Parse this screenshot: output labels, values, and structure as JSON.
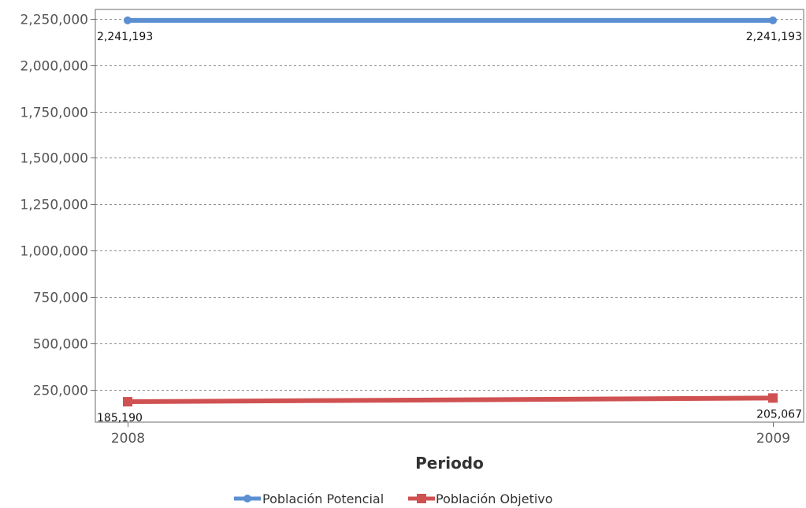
{
  "chart_data": {
    "type": "line",
    "title": "",
    "xlabel": "Periodo",
    "ylabel": "",
    "categories": [
      "2008",
      "2009"
    ],
    "x_tick_labels": [
      "2008",
      "2009"
    ],
    "ylim": [
      75000,
      2300000
    ],
    "y_ticks": [
      250000,
      500000,
      750000,
      1000000,
      1250000,
      1500000,
      1750000,
      2000000,
      2250000
    ],
    "y_tick_labels": [
      "250,000",
      "500,000",
      "750,000",
      "1,000,000",
      "1,250,000",
      "1,500,000",
      "1,750,000",
      "2,000,000",
      "2,250,000"
    ],
    "grid": true,
    "legend_position": "bottom",
    "series": [
      {
        "name": "Población Potencial",
        "values": [
          2241193,
          2241193
        ],
        "labels": [
          "2,241,193",
          "2,241,193"
        ],
        "color": "#5b8fd1",
        "marker": "circle"
      },
      {
        "name": "Población Objetivo",
        "values": [
          185190,
          205067
        ],
        "labels": [
          "185,190",
          "205,067"
        ],
        "color": "#d05151",
        "marker": "square"
      }
    ]
  }
}
